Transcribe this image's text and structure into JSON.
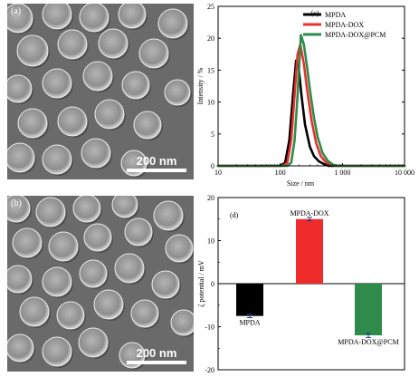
{
  "sem": {
    "a": {
      "label": "(a)",
      "scale": "200 nm"
    },
    "b": {
      "label": "(b)",
      "scale": "200 nm"
    }
  },
  "chart_data": [
    {
      "panel": "(c)",
      "type": "line",
      "xlabel": "Size / nm",
      "ylabel": "Intensity / %",
      "xscale": "log",
      "xlim": [
        10,
        10000
      ],
      "ylim": [
        0,
        25
      ],
      "xticks": [
        10,
        100,
        1000,
        10000
      ],
      "xtick_labels": [
        "10",
        "100",
        "1 000",
        "10 000"
      ],
      "yticks": [
        0,
        5,
        10,
        15,
        20,
        25
      ],
      "legend_position": "top-right",
      "series": [
        {
          "name": "MPDA",
          "color": "#000000",
          "x": [
            10,
            100,
            120,
            140,
            160,
            180,
            200,
            220,
            250,
            300,
            350,
            420,
            500,
            600,
            700,
            10000
          ],
          "y": [
            0,
            0,
            0.5,
            4,
            11,
            16.5,
            15,
            11,
            6.5,
            3,
            1.5,
            0.7,
            0.3,
            0,
            0,
            0
          ]
        },
        {
          "name": "MPDA-DOX",
          "color": "#e8312e",
          "x": [
            10,
            110,
            130,
            150,
            170,
            190,
            210,
            240,
            270,
            320,
            380,
            450,
            550,
            700,
            850,
            10000
          ],
          "y": [
            0,
            0,
            0.5,
            4,
            11,
            17.5,
            19,
            16,
            12,
            7,
            3.5,
            1.5,
            0.5,
            0.1,
            0,
            0
          ]
        },
        {
          "name": "MPDA-DOX@PCM",
          "color": "#2e8b4a",
          "x": [
            10,
            130,
            150,
            170,
            190,
            215,
            240,
            270,
            300,
            350,
            400,
            480,
            580,
            700,
            850,
            10000
          ],
          "y": [
            0,
            0,
            0.5,
            4,
            11,
            20.5,
            19,
            15.5,
            12,
            7.5,
            4.5,
            2,
            0.8,
            0.2,
            0,
            0
          ]
        }
      ]
    },
    {
      "panel": "(d)",
      "type": "bar",
      "ylabel": "ζ potential / mV",
      "ylim": [
        -20,
        20
      ],
      "yticks": [
        -20,
        -10,
        0,
        10,
        20
      ],
      "categories": [
        "MPDA",
        "MPDA-DOX",
        "MPDA-DOX@PCM"
      ],
      "values": [
        -7.5,
        15,
        -12
      ],
      "errors": [
        0.4,
        0.4,
        0.5
      ],
      "colors": [
        "#000000",
        "#ee2c2c",
        "#2e8b4a"
      ]
    }
  ]
}
